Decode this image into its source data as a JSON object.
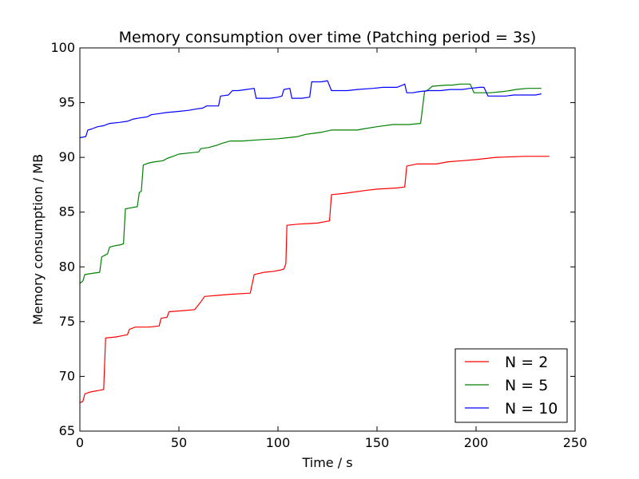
{
  "chart_data": {
    "type": "line",
    "title": "Memory consumption over time (Patching period = 3s)",
    "xlabel": "Time / s",
    "ylabel": "Memory consumption / MB",
    "xlim": [
      0,
      250
    ],
    "ylim": [
      65,
      100
    ],
    "xticks": [
      0,
      50,
      100,
      150,
      200,
      250
    ],
    "yticks": [
      65,
      70,
      75,
      80,
      85,
      90,
      95,
      100
    ],
    "grid": false,
    "legend_position": "lower-right",
    "series": [
      {
        "name": "N = 2",
        "color": "#ff0000",
        "points": [
          [
            0,
            67.6
          ],
          [
            1.5,
            67.7
          ],
          [
            2.5,
            68.4
          ],
          [
            4,
            68.5
          ],
          [
            6,
            68.6
          ],
          [
            9,
            68.7
          ],
          [
            12,
            68.8
          ],
          [
            13,
            73.5
          ],
          [
            18,
            73.6
          ],
          [
            21,
            73.7
          ],
          [
            24,
            73.8
          ],
          [
            25,
            74.3
          ],
          [
            28,
            74.5
          ],
          [
            35,
            74.5
          ],
          [
            40,
            74.6
          ],
          [
            41,
            75.3
          ],
          [
            44,
            75.4
          ],
          [
            45,
            75.9
          ],
          [
            52,
            76.0
          ],
          [
            58,
            76.1
          ],
          [
            61,
            76.8
          ],
          [
            63,
            77.3
          ],
          [
            70,
            77.4
          ],
          [
            76,
            77.5
          ],
          [
            86,
            77.6
          ],
          [
            88,
            79.3
          ],
          [
            93,
            79.5
          ],
          [
            98,
            79.6
          ],
          [
            101,
            79.7
          ],
          [
            103,
            79.8
          ],
          [
            104,
            80.3
          ],
          [
            104.5,
            83.8
          ],
          [
            110,
            83.9
          ],
          [
            120,
            84.0
          ],
          [
            126,
            84.2
          ],
          [
            127,
            86.6
          ],
          [
            133,
            86.7
          ],
          [
            137,
            86.8
          ],
          [
            145,
            87.0
          ],
          [
            150,
            87.1
          ],
          [
            160,
            87.2
          ],
          [
            164,
            87.3
          ],
          [
            165,
            89.2
          ],
          [
            170,
            89.4
          ],
          [
            180,
            89.4
          ],
          [
            186,
            89.6
          ],
          [
            193,
            89.7
          ],
          [
            200,
            89.8
          ],
          [
            205,
            89.9
          ],
          [
            210,
            90.0
          ],
          [
            225,
            90.1
          ],
          [
            237,
            90.1
          ]
        ]
      },
      {
        "name": "N = 5",
        "color": "#008000",
        "points": [
          [
            0,
            78.5
          ],
          [
            1.5,
            78.7
          ],
          [
            2.5,
            79.3
          ],
          [
            6,
            79.4
          ],
          [
            10,
            79.5
          ],
          [
            11,
            80.9
          ],
          [
            13,
            81.1
          ],
          [
            14,
            81.2
          ],
          [
            15,
            81.8
          ],
          [
            17,
            81.9
          ],
          [
            20,
            82.0
          ],
          [
            22,
            82.1
          ],
          [
            23,
            85.3
          ],
          [
            26,
            85.4
          ],
          [
            29,
            85.5
          ],
          [
            30,
            86.8
          ],
          [
            31,
            86.9
          ],
          [
            32,
            89.3
          ],
          [
            35,
            89.5
          ],
          [
            38,
            89.6
          ],
          [
            42,
            89.7
          ],
          [
            44,
            89.9
          ],
          [
            47,
            90.1
          ],
          [
            50,
            90.3
          ],
          [
            55,
            90.4
          ],
          [
            60,
            90.5
          ],
          [
            61,
            90.8
          ],
          [
            65,
            90.9
          ],
          [
            69,
            91.1
          ],
          [
            72,
            91.3
          ],
          [
            76,
            91.5
          ],
          [
            82,
            91.5
          ],
          [
            90,
            91.6
          ],
          [
            100,
            91.7
          ],
          [
            105,
            91.8
          ],
          [
            110,
            91.9
          ],
          [
            114,
            92.1
          ],
          [
            118,
            92.2
          ],
          [
            122,
            92.3
          ],
          [
            127,
            92.5
          ],
          [
            140,
            92.5
          ],
          [
            143,
            92.6
          ],
          [
            150,
            92.8
          ],
          [
            158,
            93.0
          ],
          [
            166,
            93.0
          ],
          [
            172,
            93.1
          ],
          [
            174,
            96.0
          ],
          [
            176,
            96.2
          ],
          [
            178,
            96.5
          ],
          [
            185,
            96.6
          ],
          [
            188,
            96.6
          ],
          [
            192,
            96.7
          ],
          [
            197,
            96.7
          ],
          [
            199,
            95.9
          ],
          [
            202,
            95.9
          ],
          [
            207,
            95.9
          ],
          [
            213,
            96.0
          ],
          [
            217,
            96.1
          ],
          [
            220,
            96.2
          ],
          [
            226,
            96.3
          ],
          [
            233,
            96.3
          ]
        ]
      },
      {
        "name": "N = 10",
        "color": "#0000ff",
        "points": [
          [
            0,
            91.8
          ],
          [
            3,
            91.9
          ],
          [
            4,
            92.5
          ],
          [
            6,
            92.6
          ],
          [
            9,
            92.8
          ],
          [
            12,
            92.9
          ],
          [
            15,
            93.1
          ],
          [
            20,
            93.2
          ],
          [
            24,
            93.3
          ],
          [
            27,
            93.5
          ],
          [
            30,
            93.6
          ],
          [
            34,
            93.7
          ],
          [
            36,
            93.9
          ],
          [
            40,
            94.0
          ],
          [
            44,
            94.1
          ],
          [
            50,
            94.2
          ],
          [
            55,
            94.3
          ],
          [
            58,
            94.4
          ],
          [
            62,
            94.5
          ],
          [
            64,
            94.7
          ],
          [
            70,
            94.7
          ],
          [
            71,
            95.6
          ],
          [
            75,
            95.7
          ],
          [
            77,
            96.1
          ],
          [
            80,
            96.1
          ],
          [
            84,
            96.2
          ],
          [
            88,
            96.3
          ],
          [
            89,
            95.4
          ],
          [
            92,
            95.4
          ],
          [
            96,
            95.4
          ],
          [
            100,
            95.5
          ],
          [
            102,
            95.6
          ],
          [
            103,
            96.2
          ],
          [
            106,
            96.3
          ],
          [
            107,
            95.4
          ],
          [
            112,
            95.4
          ],
          [
            116,
            95.5
          ],
          [
            117,
            96.9
          ],
          [
            122,
            96.9
          ],
          [
            125,
            97.0
          ],
          [
            127,
            96.1
          ],
          [
            135,
            96.1
          ],
          [
            140,
            96.2
          ],
          [
            148,
            96.3
          ],
          [
            153,
            96.4
          ],
          [
            160,
            96.4
          ],
          [
            163,
            96.6
          ],
          [
            164,
            96.7
          ],
          [
            165,
            95.9
          ],
          [
            168,
            95.9
          ],
          [
            171,
            96.0
          ],
          [
            176,
            96.1
          ],
          [
            182,
            96.1
          ],
          [
            187,
            96.2
          ],
          [
            193,
            96.2
          ],
          [
            197,
            96.3
          ],
          [
            202,
            96.4
          ],
          [
            204,
            96.4
          ],
          [
            206,
            95.6
          ],
          [
            210,
            95.6
          ],
          [
            215,
            95.6
          ],
          [
            219,
            95.7
          ],
          [
            225,
            95.7
          ],
          [
            230,
            95.7
          ],
          [
            233,
            95.8
          ]
        ]
      }
    ]
  }
}
